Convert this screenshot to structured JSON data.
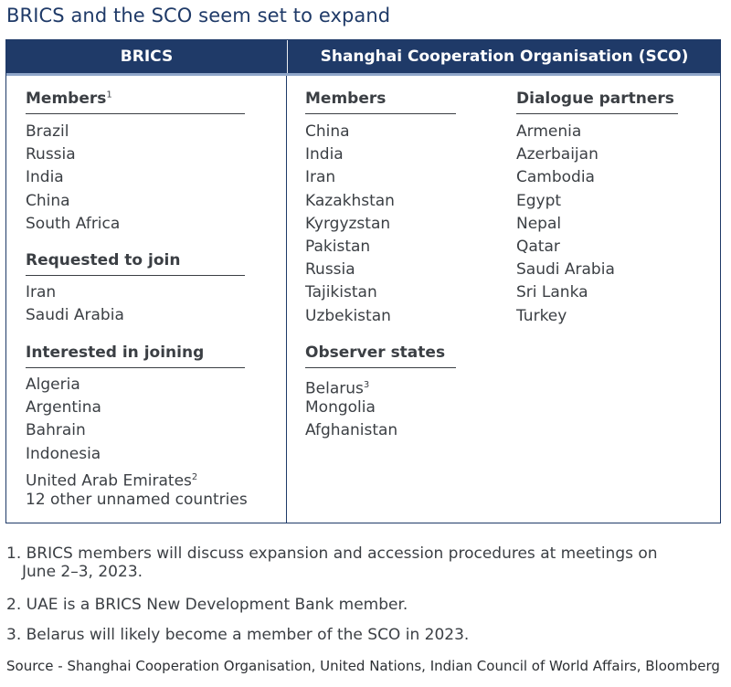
{
  "title": "BRICS and the SCO seem set to expand",
  "header": {
    "brics": "BRICS",
    "sco": "Shanghai Cooperation Organisation (SCO)"
  },
  "brics": {
    "members": {
      "heading": "Members",
      "sup": "1",
      "items": [
        "Brazil",
        "Russia",
        "India",
        "China",
        "South Africa"
      ]
    },
    "requested": {
      "heading": "Requested to join",
      "items": [
        "Iran",
        "Saudi Arabia"
      ]
    },
    "interested": {
      "heading": "Interested in joining",
      "items": [
        "Algeria",
        "Argentina",
        "Bahrain",
        "Indonesia",
        "United Arab Emirates",
        "12 other unnamed countries"
      ],
      "uae_sup": "2"
    }
  },
  "sco": {
    "members": {
      "heading": "Members",
      "items": [
        "China",
        "India",
        "Iran",
        "Kazakhstan",
        "Kyrgyzstan",
        "Pakistan",
        "Russia",
        "Tajikistan",
        "Uzbekistan"
      ]
    },
    "observers": {
      "heading": "Observer states",
      "items": [
        "Belarus",
        "Mongolia",
        "Afghanistan"
      ],
      "belarus_sup": "3"
    },
    "dialogue": {
      "heading": "Dialogue partners",
      "items": [
        "Armenia",
        "Azerbaijan",
        "Cambodia",
        "Egypt",
        "Nepal",
        "Qatar",
        "Saudi Arabia",
        "Sri Lanka",
        "Turkey"
      ]
    }
  },
  "footnotes": {
    "n1_line1": "1. BRICS members will discuss expansion and accession procedures at meetings on",
    "n1_line2": "June 2–3, 2023.",
    "n2": "2. UAE is a BRICS New Development Bank member.",
    "n3": "3. Belarus will likely become a member of the SCO in 2023."
  },
  "source": "Source - Shanghai Cooperation Organisation, United Nations, Indian Council of World Affairs, Bloomberg"
}
